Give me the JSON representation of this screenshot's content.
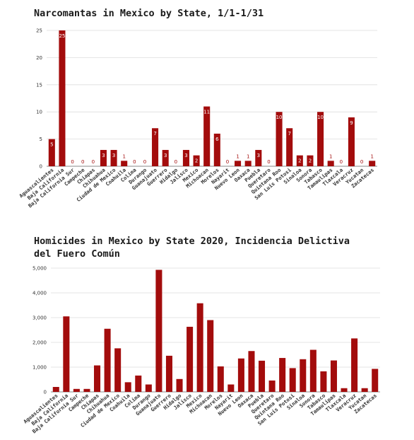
{
  "colors": {
    "bar": "#a30c0c",
    "grid": "#dedede",
    "label_inside": "#ffffff",
    "label_zero": "#a30c0c"
  },
  "chart_data": [
    {
      "type": "bar",
      "title": "Narcomantas in Mexico by State, 1/1-1/31",
      "categories": [
        "Aguascalientes",
        "Baja California",
        "Baja California Sur",
        "Campeche",
        "Chiapas",
        "Chihuahua",
        "Ciudad de Mexico",
        "Coahuila",
        "Colima",
        "Durango",
        "Guanajuato",
        "Guerrero",
        "Hidalgo",
        "Jalisco",
        "Mexico",
        "Michoacan",
        "Morelos",
        "Nayarit",
        "Nuevo Leon",
        "Oaxaca",
        "Puebla",
        "Queretaro",
        "Quintana Roo",
        "San Luis Potosi",
        "Sinaloa",
        "Sonora",
        "Tabasco",
        "Tamaulipas",
        "Tlaxcala",
        "Veracruz",
        "Yucatan",
        "Zacatecas"
      ],
      "values": [
        5,
        25,
        0,
        0,
        0,
        3,
        3,
        1,
        0,
        0,
        7,
        3,
        0,
        3,
        2,
        11,
        6,
        0,
        1,
        1,
        3,
        0,
        10,
        7,
        2,
        2,
        10,
        1,
        0,
        9,
        0,
        1
      ],
      "data_labels": true,
      "ylim": [
        0,
        25
      ],
      "yticks": [
        0,
        5,
        10,
        15,
        20,
        25
      ],
      "ytick_labels": [
        "0",
        "5",
        "10",
        "15",
        "20",
        "25"
      ],
      "grid": true,
      "xlabel": "",
      "ylabel": ""
    },
    {
      "type": "bar",
      "title": "Homicides in Mexico by State 2020, Incidencia Delictiva del Fuero Común",
      "categories": [
        "Aguascalientes",
        "Baja California",
        "Baja California Sur",
        "Campeche",
        "Chiapas",
        "Chihuahua",
        "Ciudad de Mexico",
        "Coahuila",
        "Colima",
        "Durango",
        "Guanajuato",
        "Guerrero",
        "Hidalgo",
        "Jalisco",
        "Mexico",
        "Michoacan",
        "Morelos",
        "Nayarit",
        "Nuevo Leon",
        "Oaxaca",
        "Puebla",
        "Queretaro",
        "Quintana Roo",
        "San Luis Potosi",
        "Sinaloa",
        "Sonora",
        "Tabasco",
        "Tamaulipas",
        "Tlaxcala",
        "Veracruz",
        "Yucatan",
        "Zacatecas"
      ],
      "values": [
        200,
        3050,
        120,
        120,
        1070,
        2550,
        1760,
        390,
        660,
        300,
        4930,
        1460,
        520,
        2630,
        3580,
        2900,
        1030,
        300,
        1350,
        1650,
        1260,
        460,
        1370,
        960,
        1320,
        1700,
        830,
        1270,
        150,
        2160,
        150,
        930
      ],
      "data_labels": false,
      "ylim": [
        0,
        5000
      ],
      "yticks": [
        0,
        1000,
        2000,
        3000,
        4000,
        5000
      ],
      "ytick_labels": [
        "0",
        "1,000",
        "2,000",
        "3,000",
        "4,000",
        "5,000"
      ],
      "grid": true,
      "xlabel": "",
      "ylabel": ""
    }
  ]
}
